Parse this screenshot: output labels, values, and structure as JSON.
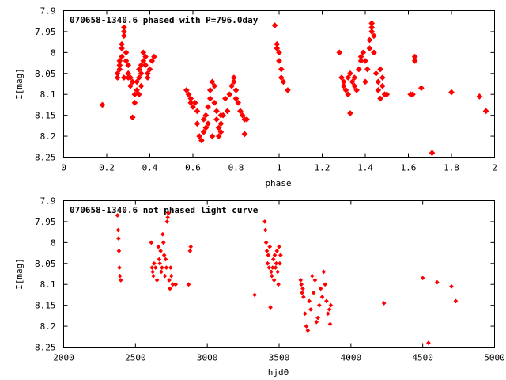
{
  "chart_data": [
    {
      "type": "scatter",
      "title": "070658-1340.6 phased with P=796.0day",
      "xlabel": "phase",
      "ylabel": "I[mag]",
      "xlim": [
        0,
        2
      ],
      "ylim": [
        7.9,
        8.25
      ],
      "y_inverted": true,
      "x_ticks": [
        0,
        0.2,
        0.4,
        0.6,
        0.8,
        1,
        1.2,
        1.4,
        1.6,
        1.8,
        2
      ],
      "x_tick_labels": [
        "0",
        "0.2",
        "0.4",
        "0.6",
        "0.8",
        "1",
        "1.2",
        "1.4",
        "1.6",
        "1.8",
        "2"
      ],
      "y_ticks": [
        7.9,
        7.95,
        8,
        8.05,
        8.1,
        8.15,
        8.2,
        8.25
      ],
      "y_tick_labels": [
        "7.9",
        "7.95",
        "8",
        "8.05",
        "8.1",
        "8.15",
        "8.2",
        "8.25"
      ],
      "grid": false,
      "marker_color": "#ff0000",
      "series": [
        {
          "points": [
            [
              0.18,
              8.125
            ],
            [
              0.25,
              8.05
            ],
            [
              0.25,
              8.06
            ],
            [
              0.26,
              8.03
            ],
            [
              0.26,
              8.04
            ],
            [
              0.26,
              8.02
            ],
            [
              0.27,
              8.01
            ],
            [
              0.27,
              7.99
            ],
            [
              0.27,
              7.98
            ],
            [
              0.28,
              7.96
            ],
            [
              0.28,
              7.95
            ],
            [
              0.28,
              7.94
            ],
            [
              0.29,
              8.0
            ],
            [
              0.29,
              8.02
            ],
            [
              0.3,
              8.05
            ],
            [
              0.3,
              8.06
            ],
            [
              0.31,
              8.08
            ],
            [
              0.31,
              8.06
            ],
            [
              0.32,
              8.07
            ],
            [
              0.32,
              8.155
            ],
            [
              0.33,
              8.1
            ],
            [
              0.33,
              8.12
            ],
            [
              0.34,
              8.09
            ],
            [
              0.34,
              8.07
            ],
            [
              0.35,
              8.06
            ],
            [
              0.35,
              8.04
            ],
            [
              0.36,
              8.05
            ],
            [
              0.36,
              8.03
            ],
            [
              0.37,
              8.02
            ],
            [
              0.37,
              8.0
            ],
            [
              0.38,
              8.01
            ],
            [
              0.38,
              8.03
            ],
            [
              0.39,
              8.05
            ],
            [
              0.39,
              8.06
            ],
            [
              0.4,
              8.04
            ],
            [
              0.41,
              8.02
            ],
            [
              0.42,
              8.01
            ],
            [
              0.35,
              8.1
            ],
            [
              0.36,
              8.08
            ],
            [
              0.3,
              8.03
            ],
            [
              0.28,
              8.06
            ],
            [
              0.57,
              8.09
            ],
            [
              0.58,
              8.1
            ],
            [
              0.59,
              8.12
            ],
            [
              0.59,
              8.11
            ],
            [
              0.6,
              8.13
            ],
            [
              0.61,
              8.12
            ],
            [
              0.62,
              8.14
            ],
            [
              0.62,
              8.17
            ],
            [
              0.63,
              8.2
            ],
            [
              0.64,
              8.21
            ],
            [
              0.65,
              8.19
            ],
            [
              0.65,
              8.16
            ],
            [
              0.66,
              8.15
            ],
            [
              0.66,
              8.18
            ],
            [
              0.67,
              8.17
            ],
            [
              0.67,
              8.13
            ],
            [
              0.68,
              8.11
            ],
            [
              0.68,
              8.09
            ],
            [
              0.69,
              8.07
            ],
            [
              0.7,
              8.08
            ],
            [
              0.7,
              8.12
            ],
            [
              0.71,
              8.14
            ],
            [
              0.71,
              8.16
            ],
            [
              0.72,
              8.18
            ],
            [
              0.72,
              8.2
            ],
            [
              0.73,
              8.19
            ],
            [
              0.73,
              8.17
            ],
            [
              0.74,
              8.15
            ],
            [
              0.75,
              8.11
            ],
            [
              0.76,
              8.14
            ],
            [
              0.77,
              8.1
            ],
            [
              0.78,
              8.08
            ],
            [
              0.79,
              8.06
            ],
            [
              0.79,
              8.07
            ],
            [
              0.8,
              8.09
            ],
            [
              0.8,
              8.11
            ],
            [
              0.81,
              8.12
            ],
            [
              0.82,
              8.14
            ],
            [
              0.83,
              8.15
            ],
            [
              0.84,
              8.16
            ],
            [
              0.84,
              8.195
            ],
            [
              0.85,
              8.16
            ],
            [
              0.73,
              8.15
            ],
            [
              0.69,
              8.2
            ],
            [
              0.98,
              7.935
            ],
            [
              0.99,
              7.98
            ],
            [
              0.99,
              7.99
            ],
            [
              1.0,
              8.0
            ],
            [
              1.0,
              8.02
            ],
            [
              1.01,
              8.04
            ],
            [
              1.01,
              8.06
            ],
            [
              1.02,
              8.07
            ],
            [
              1.04,
              8.09
            ],
            [
              1.28,
              8.0
            ],
            [
              1.29,
              8.06
            ],
            [
              1.3,
              8.07
            ],
            [
              1.3,
              8.08
            ],
            [
              1.31,
              8.09
            ],
            [
              1.32,
              8.1
            ],
            [
              1.32,
              8.06
            ],
            [
              1.33,
              8.05
            ],
            [
              1.33,
              8.145
            ],
            [
              1.34,
              8.07
            ],
            [
              1.35,
              8.08
            ],
            [
              1.36,
              8.09
            ],
            [
              1.37,
              8.04
            ],
            [
              1.38,
              8.02
            ],
            [
              1.38,
              8.01
            ],
            [
              1.39,
              8.0
            ],
            [
              1.4,
              8.02
            ],
            [
              1.41,
              8.04
            ],
            [
              1.42,
              7.99
            ],
            [
              1.42,
              7.97
            ],
            [
              1.43,
              7.95
            ],
            [
              1.43,
              7.94
            ],
            [
              1.43,
              7.93
            ],
            [
              1.44,
              7.96
            ],
            [
              1.44,
              8.0
            ],
            [
              1.45,
              8.05
            ],
            [
              1.46,
              8.07
            ],
            [
              1.46,
              8.09
            ],
            [
              1.47,
              8.11
            ],
            [
              1.48,
              8.08
            ],
            [
              1.48,
              8.06
            ],
            [
              1.49,
              8.1
            ],
            [
              1.5,
              8.1
            ],
            [
              1.47,
              8.04
            ],
            [
              1.4,
              8.07
            ],
            [
              1.35,
              8.06
            ],
            [
              1.61,
              8.1
            ],
            [
              1.62,
              8.1
            ],
            [
              1.63,
              8.02
            ],
            [
              1.63,
              8.01
            ],
            [
              1.66,
              8.085
            ],
            [
              1.71,
              8.24
            ],
            [
              1.8,
              8.095
            ],
            [
              1.93,
              8.105
            ],
            [
              1.96,
              8.14
            ]
          ]
        }
      ]
    },
    {
      "type": "scatter",
      "title": "070658-1340.6 not phased light curve",
      "xlabel": "hjd0",
      "ylabel": "I[mag]",
      "xlim": [
        2000,
        5000
      ],
      "ylim": [
        7.9,
        8.25
      ],
      "y_inverted": true,
      "x_ticks": [
        2000,
        2500,
        3000,
        3500,
        4000,
        4500,
        5000
      ],
      "x_tick_labels": [
        "2000",
        "2500",
        "3000",
        "3500",
        "4000",
        "4500",
        "5000"
      ],
      "y_ticks": [
        7.9,
        7.95,
        8,
        8.05,
        8.1,
        8.15,
        8.2,
        8.25
      ],
      "y_tick_labels": [
        "7.9",
        "7.95",
        "8",
        "8.05",
        "8.1",
        "8.15",
        "8.2",
        "8.25"
      ],
      "grid": false,
      "marker_color": "#ff0000",
      "series": [
        {
          "points": [
            [
              2375,
              7.935
            ],
            [
              2380,
              7.97
            ],
            [
              2382,
              7.99
            ],
            [
              2385,
              8.02
            ],
            [
              2388,
              8.06
            ],
            [
              2392,
              8.08
            ],
            [
              2398,
              8.09
            ],
            [
              2610,
              8.0
            ],
            [
              2615,
              8.06
            ],
            [
              2620,
              8.07
            ],
            [
              2625,
              8.08
            ],
            [
              2630,
              8.05
            ],
            [
              2640,
              8.06
            ],
            [
              2650,
              8.09
            ],
            [
              2660,
              8.01
            ],
            [
              2665,
              8.04
            ],
            [
              2670,
              8.05
            ],
            [
              2675,
              8.02
            ],
            [
              2680,
              8.07
            ],
            [
              2685,
              8.06
            ],
            [
              2690,
              7.98
            ],
            [
              2695,
              8.0
            ],
            [
              2700,
              8.03
            ],
            [
              2705,
              8.08
            ],
            [
              2710,
              8.04
            ],
            [
              2715,
              8.06
            ],
            [
              2720,
              7.95
            ],
            [
              2725,
              7.94
            ],
            [
              2730,
              7.93
            ],
            [
              2735,
              8.09
            ],
            [
              2740,
              8.11
            ],
            [
              2745,
              8.06
            ],
            [
              2750,
              8.08
            ],
            [
              2760,
              8.1
            ],
            [
              2780,
              8.1
            ],
            [
              2870,
              8.1
            ],
            [
              2880,
              8.02
            ],
            [
              2885,
              8.01
            ],
            [
              3330,
              8.125
            ],
            [
              3400,
              7.95
            ],
            [
              3405,
              7.97
            ],
            [
              3410,
              8.0
            ],
            [
              3415,
              8.02
            ],
            [
              3420,
              8.05
            ],
            [
              3425,
              8.03
            ],
            [
              3430,
              8.06
            ],
            [
              3435,
              8.01
            ],
            [
              3440,
              8.155
            ],
            [
              3445,
              8.07
            ],
            [
              3450,
              8.08
            ],
            [
              3455,
              8.06
            ],
            [
              3460,
              8.04
            ],
            [
              3465,
              8.09
            ],
            [
              3470,
              8.03
            ],
            [
              3475,
              8.06
            ],
            [
              3480,
              8.05
            ],
            [
              3485,
              8.02
            ],
            [
              3490,
              8.07
            ],
            [
              3495,
              8.1
            ],
            [
              3500,
              8.01
            ],
            [
              3505,
              8.05
            ],
            [
              3510,
              8.03
            ],
            [
              3650,
              8.09
            ],
            [
              3655,
              8.1
            ],
            [
              3660,
              8.12
            ],
            [
              3665,
              8.11
            ],
            [
              3670,
              8.13
            ],
            [
              3680,
              8.17
            ],
            [
              3690,
              8.2
            ],
            [
              3700,
              8.21
            ],
            [
              3710,
              8.14
            ],
            [
              3720,
              8.16
            ],
            [
              3730,
              8.08
            ],
            [
              3740,
              8.12
            ],
            [
              3750,
              8.09
            ],
            [
              3760,
              8.19
            ],
            [
              3770,
              8.18
            ],
            [
              3780,
              8.15
            ],
            [
              3790,
              8.11
            ],
            [
              3800,
              8.13
            ],
            [
              3810,
              8.07
            ],
            [
              3820,
              8.1
            ],
            [
              3830,
              8.14
            ],
            [
              3840,
              8.17
            ],
            [
              3850,
              8.16
            ],
            [
              3855,
              8.195
            ],
            [
              3860,
              8.15
            ],
            [
              4230,
              8.145
            ],
            [
              4500,
              8.085
            ],
            [
              4540,
              8.24
            ],
            [
              4600,
              8.095
            ],
            [
              4700,
              8.105
            ],
            [
              4730,
              8.14
            ]
          ]
        }
      ]
    }
  ]
}
